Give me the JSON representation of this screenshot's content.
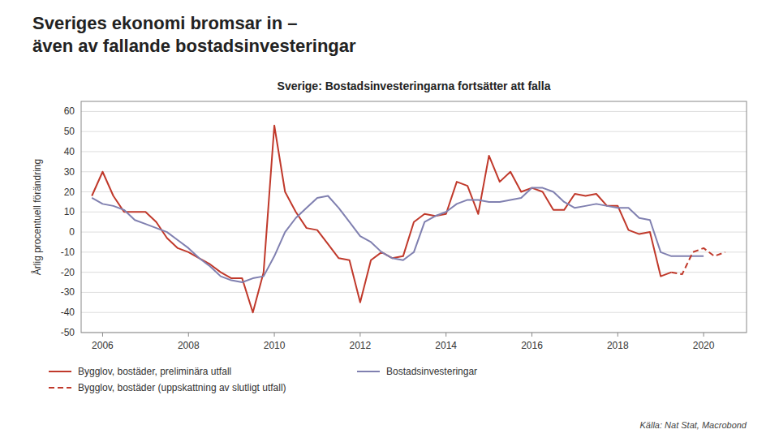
{
  "chart_data": {
    "type": "line",
    "title": [
      "Sveriges ekonomi bromsar in –",
      "även av fallande bostadsinvesteringar"
    ],
    "subtitle": "Sverige: Bostadsinvesteringarna fortsätter att falla",
    "ylabel": "Årlig procentuell förändring",
    "annotations": [
      "Källa: Nat Stat, Macrobond"
    ],
    "xlim": [
      2005.5,
      2021.0
    ],
    "ylim": [
      -50,
      65
    ],
    "xticks": [
      2006,
      2008,
      2010,
      2012,
      2014,
      2016,
      2018,
      2020
    ],
    "yticks": [
      -50,
      -40,
      -30,
      -20,
      -10,
      0,
      10,
      20,
      30,
      40,
      50,
      60
    ],
    "grid": true,
    "legend": "bottom",
    "series": [
      {
        "name": "Bygglov, bostäder, preliminära utfall",
        "color": "#c0392b",
        "line_style": "solid",
        "x": [
          2005.75,
          2006.0,
          2006.25,
          2006.5,
          2006.75,
          2007.0,
          2007.25,
          2007.5,
          2007.75,
          2008.0,
          2008.25,
          2008.5,
          2008.75,
          2009.0,
          2009.25,
          2009.5,
          2009.75,
          2010.0,
          2010.25,
          2010.5,
          2010.75,
          2011.0,
          2011.25,
          2011.5,
          2011.75,
          2012.0,
          2012.25,
          2012.5,
          2012.75,
          2013.0,
          2013.25,
          2013.5,
          2013.75,
          2014.0,
          2014.25,
          2014.5,
          2014.75,
          2015.0,
          2015.25,
          2015.5,
          2015.75,
          2016.0,
          2016.25,
          2016.5,
          2016.75,
          2017.0,
          2017.25,
          2017.5,
          2017.75,
          2018.0,
          2018.25,
          2018.5,
          2018.75,
          2019.0,
          2019.25
        ],
        "values": [
          18,
          30,
          18,
          10,
          10,
          10,
          5,
          -3,
          -8,
          -10,
          -13,
          -16,
          -20,
          -23,
          -23,
          -40,
          -20,
          53,
          20,
          10,
          2,
          1,
          -6,
          -13,
          -14,
          -35,
          -14,
          -10,
          -13,
          -12,
          5,
          9,
          8,
          9,
          25,
          23,
          9,
          38,
          25,
          30,
          20,
          22,
          20,
          11,
          11,
          19,
          18,
          19,
          13,
          13,
          1,
          -1,
          0,
          -22,
          -20
        ]
      },
      {
        "name": "Bostadsinvesteringar",
        "color": "#8080b0",
        "line_style": "solid",
        "x": [
          2005.75,
          2006.0,
          2006.25,
          2006.5,
          2006.75,
          2007.0,
          2007.25,
          2007.5,
          2007.75,
          2008.0,
          2008.25,
          2008.5,
          2008.75,
          2009.0,
          2009.25,
          2009.5,
          2009.75,
          2010.0,
          2010.25,
          2010.5,
          2010.75,
          2011.0,
          2011.25,
          2011.5,
          2011.75,
          2012.0,
          2012.25,
          2012.5,
          2012.75,
          2013.0,
          2013.25,
          2013.5,
          2013.75,
          2014.0,
          2014.25,
          2014.5,
          2014.75,
          2015.0,
          2015.25,
          2015.5,
          2015.75,
          2016.0,
          2016.25,
          2016.5,
          2016.75,
          2017.0,
          2017.25,
          2017.5,
          2017.75,
          2018.0,
          2018.25,
          2018.5,
          2018.75,
          2019.0,
          2019.25,
          2019.5,
          2019.75,
          2020.0
        ],
        "values": [
          17,
          14,
          13,
          11,
          6,
          4,
          2,
          0,
          -4,
          -8,
          -13,
          -17,
          -22,
          -24,
          -25,
          -23,
          -22,
          -12,
          0,
          7,
          12,
          17,
          18,
          12,
          5,
          -2,
          -5,
          -10,
          -13,
          -14,
          -10,
          5,
          8,
          10,
          14,
          16,
          16,
          15,
          15,
          16,
          17,
          22,
          22,
          20,
          15,
          12,
          13,
          14,
          13,
          12,
          12,
          7,
          6,
          -10,
          -12,
          -12,
          -12,
          -12
        ]
      },
      {
        "name": "Bygglov, bostäder (uppskattning av slutligt utfall)",
        "color": "#c0392b",
        "line_style": "dashed",
        "x": [
          2019.25,
          2019.5,
          2019.75,
          2020.0,
          2020.25,
          2020.5
        ],
        "values": [
          -20,
          -21,
          -10,
          -8,
          -12,
          -10
        ]
      }
    ]
  }
}
